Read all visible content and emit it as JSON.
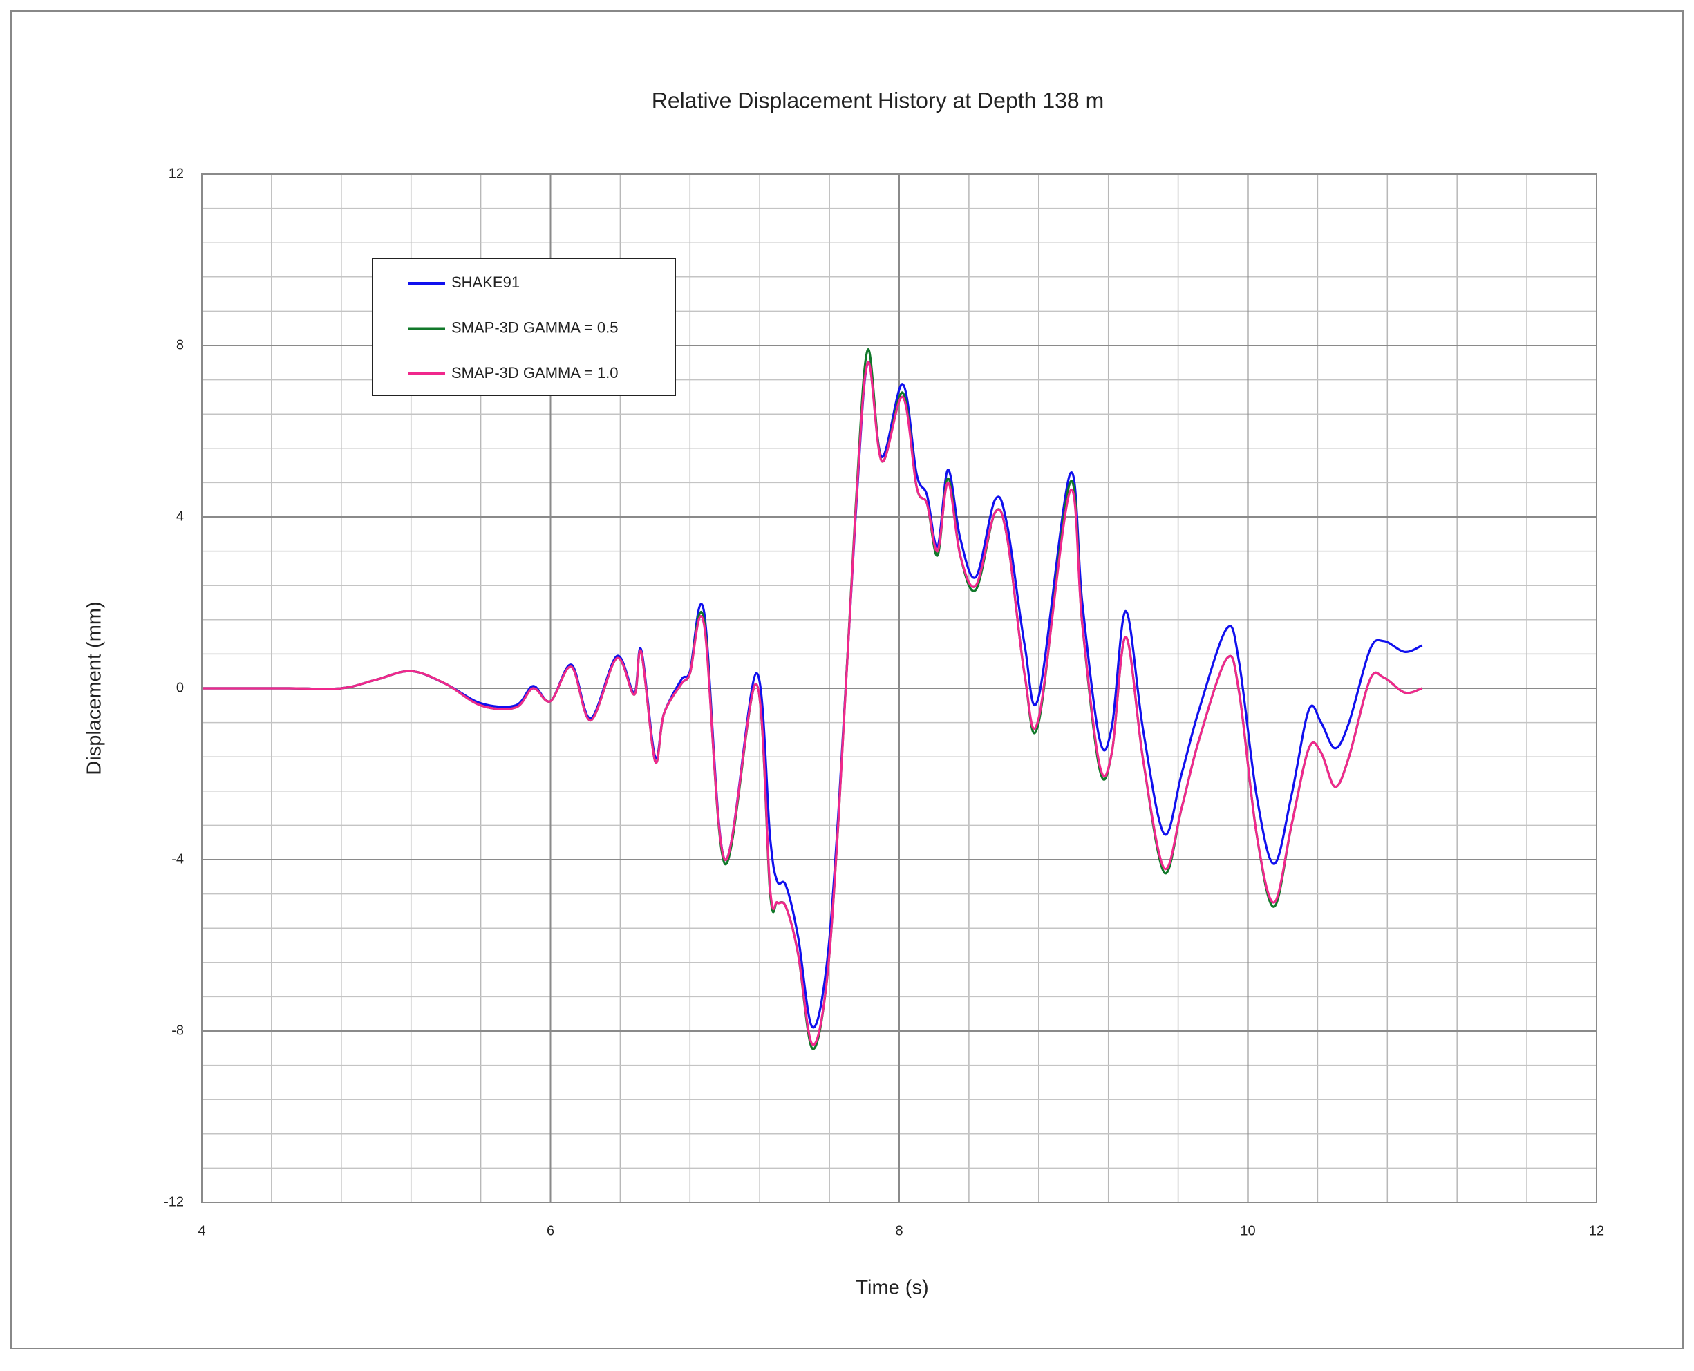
{
  "chart_data": {
    "type": "line",
    "title": "Relative Displacement History  at Depth 138 m",
    "x_label": "Time (s)",
    "y_label": "Displacement (mm)",
    "xlim": [
      4,
      12
    ],
    "ylim": [
      -12,
      12
    ],
    "xticks": [
      4,
      6,
      8,
      10,
      12
    ],
    "yticks": [
      -12,
      -8,
      -4,
      0,
      4,
      8,
      12
    ],
    "x_minor_step": 0.4,
    "y_minor_step": 0.8,
    "grid": true,
    "legend": "upper-left",
    "x": [
      4.0,
      4.5,
      4.8,
      5.0,
      5.2,
      5.4,
      5.6,
      5.8,
      5.9,
      6.0,
      6.12,
      6.23,
      6.38,
      6.48,
      6.52,
      6.6,
      6.65,
      6.75,
      6.8,
      6.88,
      7.0,
      7.18,
      7.26,
      7.3,
      7.35,
      7.42,
      7.5,
      7.58,
      7.65,
      7.75,
      7.82,
      7.9,
      8.02,
      8.1,
      8.16,
      8.22,
      8.28,
      8.35,
      8.44,
      8.55,
      8.62,
      8.72,
      8.8,
      8.98,
      9.05,
      9.15,
      9.22,
      9.3,
      9.4,
      9.52,
      9.62,
      9.72,
      9.88,
      9.95,
      10.05,
      10.15,
      10.25,
      10.35,
      10.42,
      10.5,
      10.58,
      10.7,
      10.78,
      10.9,
      11.0
    ],
    "series": [
      {
        "name": "SHAKE91",
        "color": "#1010ee",
        "values": [
          0,
          0,
          0,
          0.2,
          0.4,
          0.1,
          -0.35,
          -0.4,
          0.05,
          -0.3,
          0.55,
          -0.7,
          0.75,
          -0.1,
          0.9,
          -1.6,
          -0.6,
          0.2,
          0.4,
          1.8,
          -4.0,
          0.35,
          -3.5,
          -4.5,
          -4.6,
          -5.8,
          -7.9,
          -6.6,
          -3.0,
          4.0,
          7.6,
          5.4,
          7.1,
          5.0,
          4.5,
          3.3,
          5.1,
          3.5,
          2.6,
          4.4,
          3.8,
          1.0,
          -0.2,
          5.0,
          2.0,
          -1.2,
          -0.9,
          1.8,
          -1.0,
          -3.4,
          -2.0,
          -0.5,
          1.4,
          0.6,
          -2.5,
          -4.1,
          -2.5,
          -0.5,
          -0.8,
          -1.4,
          -0.8,
          0.9,
          1.1,
          0.85,
          1.0
        ]
      },
      {
        "name": "SMAP-3D  GAMMA = 0.5",
        "color": "#11782a",
        "values": [
          0,
          0,
          0,
          0.2,
          0.4,
          0.1,
          -0.4,
          -0.45,
          0.0,
          -0.3,
          0.5,
          -0.75,
          0.7,
          -0.15,
          0.85,
          -1.7,
          -0.6,
          0.1,
          0.35,
          1.6,
          -4.1,
          0.1,
          -4.8,
          -5.0,
          -5.1,
          -6.2,
          -8.4,
          -7.0,
          -3.2,
          4.2,
          7.9,
          5.3,
          6.9,
          4.7,
          4.3,
          3.1,
          4.9,
          3.1,
          2.3,
          4.1,
          3.5,
          0.3,
          -0.8,
          4.8,
          1.5,
          -1.9,
          -1.5,
          1.2,
          -1.7,
          -4.3,
          -2.8,
          -1.2,
          0.7,
          -0.1,
          -3.4,
          -5.1,
          -3.2,
          -1.4,
          -1.5,
          -2.3,
          -1.6,
          0.2,
          0.25,
          -0.1,
          0.0
        ]
      },
      {
        "name": "SMAP-3D  GAMMA = 1.0",
        "color": "#f0288c",
        "values": [
          0,
          0,
          0,
          0.2,
          0.4,
          0.1,
          -0.4,
          -0.45,
          0.0,
          -0.3,
          0.5,
          -0.75,
          0.7,
          -0.15,
          0.85,
          -1.7,
          -0.6,
          0.1,
          0.35,
          1.5,
          -4.0,
          0.1,
          -4.7,
          -5.0,
          -5.1,
          -6.2,
          -8.3,
          -7.0,
          -3.2,
          4.1,
          7.6,
          5.3,
          6.8,
          4.7,
          4.3,
          3.2,
          4.8,
          3.1,
          2.4,
          4.1,
          3.5,
          0.3,
          -0.7,
          4.6,
          1.5,
          -1.8,
          -1.5,
          1.2,
          -1.7,
          -4.2,
          -2.8,
          -1.2,
          0.7,
          -0.1,
          -3.4,
          -5.0,
          -3.2,
          -1.4,
          -1.5,
          -2.3,
          -1.6,
          0.2,
          0.25,
          -0.1,
          0.0
        ]
      }
    ]
  }
}
